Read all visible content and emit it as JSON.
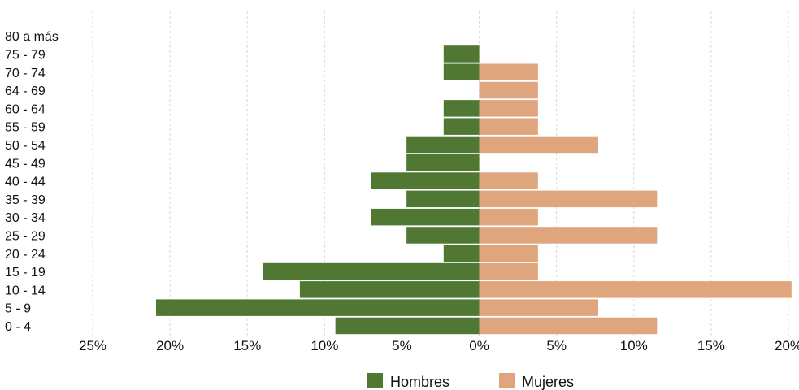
{
  "chart_data": {
    "type": "bar",
    "orientation": "horizontal",
    "categories": [
      "80 a más",
      "75 - 79",
      "70 - 74",
      "64 - 69",
      "60 - 64",
      "55 - 59",
      "50 - 54",
      "45 - 49",
      "40 - 44",
      "35 - 39",
      "30 - 34",
      "25 - 29",
      "20 - 24",
      "15 - 19",
      "10 - 14",
      "5 - 9",
      "0 - 4"
    ],
    "series": [
      {
        "name": "Hombres",
        "color": "#507832",
        "values": [
          0,
          2.3,
          2.3,
          0,
          2.3,
          2.3,
          4.7,
          4.7,
          7.0,
          4.7,
          7.0,
          4.7,
          2.3,
          14.0,
          11.6,
          20.9,
          9.3
        ]
      },
      {
        "name": "Mujeres",
        "color": "#dfa57c",
        "values": [
          0,
          0,
          3.8,
          3.8,
          3.8,
          3.8,
          7.7,
          0,
          3.8,
          11.5,
          3.8,
          11.5,
          3.8,
          3.8,
          20.2,
          7.7,
          11.5
        ]
      }
    ],
    "xticks": [
      "25%",
      "20%",
      "15%",
      "10%",
      "5%",
      "0%",
      "5%",
      "10%",
      "15%",
      "20%"
    ],
    "xlim": [
      -25,
      20
    ],
    "grid": true,
    "legend": "bottom",
    "title": "",
    "xlabel": "",
    "ylabel": ""
  }
}
